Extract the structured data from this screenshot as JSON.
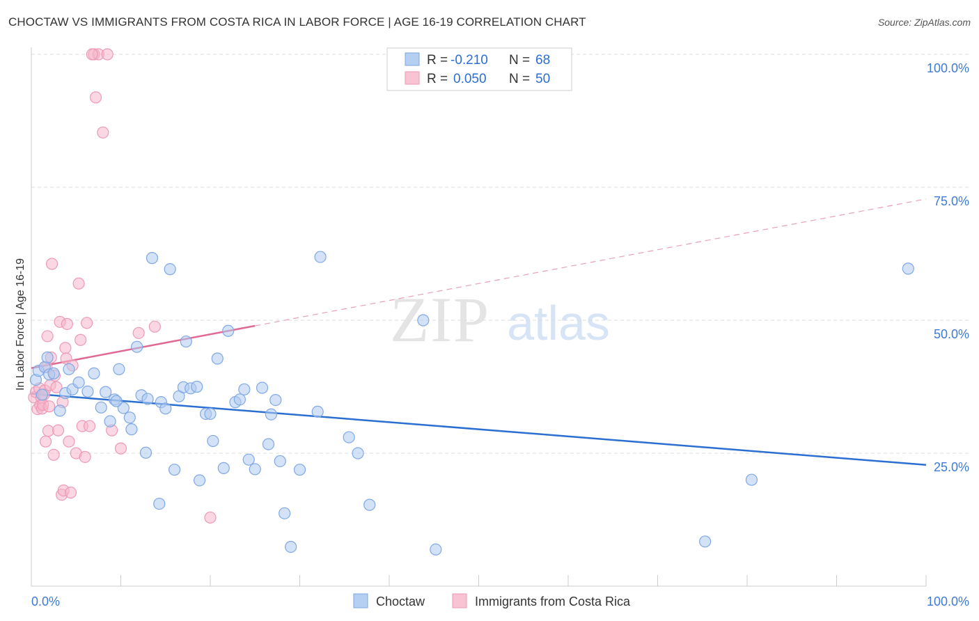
{
  "header": {
    "title": "CHOCTAW VS IMMIGRANTS FROM COSTA RICA IN LABOR FORCE | AGE 16-19 CORRELATION CHART",
    "source": "Source: ZipAtlas.com"
  },
  "watermark": {
    "zip": "ZIP",
    "atlas": "atlas"
  },
  "colors": {
    "blue": "#2b6fd1",
    "blue_fill": "#aecbf1",
    "pink": "#e06a95",
    "pink_fill": "#f6b6ca",
    "grid": "#dddddd",
    "label_blue": "#3d7bd6"
  },
  "chart_data": {
    "type": "scatter",
    "title": "CHOCTAW VS IMMIGRANTS FROM COSTA RICA IN LABOR FORCE | AGE 16-19 CORRELATION CHART",
    "xlabel": "",
    "ylabel": "In Labor Force | Age 16-19",
    "xlim": [
      0,
      100
    ],
    "ylim": [
      0,
      100
    ],
    "x_tick_labels": [
      "0.0%",
      "100.0%"
    ],
    "y_ticks": [
      25,
      50,
      75,
      100
    ],
    "y_tick_labels": [
      "25.0%",
      "50.0%",
      "75.0%",
      "100.0%"
    ],
    "legend": {
      "position": "top-center",
      "entries": [
        {
          "r_label": "R =",
          "r_value": "-0.210",
          "n_label": "N =",
          "n_value": "68"
        },
        {
          "r_label": "R =",
          "r_value": "0.050",
          "n_label": "N =",
          "n_value": "50"
        }
      ]
    },
    "bottom_legend": [
      "Choctaw",
      "Immigrants from Costa Rica"
    ],
    "series": [
      {
        "name": "Choctaw",
        "r": -0.21,
        "n": 68,
        "trend": {
          "x0": 0,
          "y0": 36.2,
          "x1": 100,
          "y1": 22.8,
          "dashed_from": null
        },
        "points": [
          [
            0.5,
            38.8
          ],
          [
            0.8,
            40.5
          ],
          [
            1.2,
            36.0
          ],
          [
            1.5,
            41.2
          ],
          [
            1.8,
            43.0
          ],
          [
            2.0,
            39.8
          ],
          [
            2.5,
            40.0
          ],
          [
            3.2,
            33.0
          ],
          [
            3.8,
            36.3
          ],
          [
            4.2,
            40.8
          ],
          [
            4.6,
            37.0
          ],
          [
            5.3,
            38.3
          ],
          [
            6.3,
            36.6
          ],
          [
            7.0,
            40.0
          ],
          [
            7.8,
            33.6
          ],
          [
            8.3,
            36.5
          ],
          [
            8.8,
            31.0
          ],
          [
            9.3,
            35.1
          ],
          [
            9.8,
            40.8
          ],
          [
            10.3,
            33.5
          ],
          [
            11.0,
            31.7
          ],
          [
            11.2,
            29.5
          ],
          [
            11.8,
            45.0
          ],
          [
            12.3,
            35.9
          ],
          [
            12.8,
            25.1
          ],
          [
            13.0,
            35.2
          ],
          [
            13.5,
            61.7
          ],
          [
            14.3,
            15.5
          ],
          [
            14.5,
            34.6
          ],
          [
            15.0,
            33.4
          ],
          [
            15.5,
            59.6
          ],
          [
            16.0,
            21.9
          ],
          [
            16.5,
            35.7
          ],
          [
            17.0,
            37.4
          ],
          [
            17.3,
            46.0
          ],
          [
            17.8,
            37.2
          ],
          [
            18.5,
            37.5
          ],
          [
            18.8,
            19.9
          ],
          [
            19.5,
            32.4
          ],
          [
            20.0,
            32.4
          ],
          [
            20.3,
            27.3
          ],
          [
            20.8,
            42.8
          ],
          [
            21.5,
            22.2
          ],
          [
            22.0,
            48.0
          ],
          [
            22.8,
            34.6
          ],
          [
            23.3,
            35.1
          ],
          [
            23.8,
            37.0
          ],
          [
            24.3,
            23.8
          ],
          [
            25.0,
            22.0
          ],
          [
            25.8,
            37.3
          ],
          [
            26.5,
            26.7
          ],
          [
            26.8,
            32.3
          ],
          [
            27.3,
            35.0
          ],
          [
            27.8,
            23.5
          ],
          [
            28.3,
            13.7
          ],
          [
            29.0,
            7.4
          ],
          [
            30.0,
            21.9
          ],
          [
            32.0,
            32.8
          ],
          [
            32.3,
            61.9
          ],
          [
            35.5,
            28.0
          ],
          [
            36.5,
            25.0
          ],
          [
            37.8,
            15.3
          ],
          [
            43.8,
            50.0
          ],
          [
            45.2,
            6.9
          ],
          [
            75.3,
            8.4
          ],
          [
            80.5,
            20.0
          ],
          [
            98.0,
            59.7
          ],
          [
            9.5,
            34.8
          ]
        ]
      },
      {
        "name": "Immigrants from Costa Rica",
        "r": 0.05,
        "n": 50,
        "trend": {
          "x0": 0,
          "y0": 41.0,
          "x1": 100,
          "y1": 72.8,
          "solid_until": 25
        },
        "points": [
          [
            0.3,
            35.5
          ],
          [
            0.5,
            36.5
          ],
          [
            0.7,
            33.3
          ],
          [
            0.9,
            37.2
          ],
          [
            1.0,
            34.0
          ],
          [
            1.1,
            35.5
          ],
          [
            1.2,
            33.4
          ],
          [
            1.3,
            34.1
          ],
          [
            1.5,
            36.8
          ],
          [
            1.6,
            27.2
          ],
          [
            1.7,
            41.2
          ],
          [
            1.8,
            47.0
          ],
          [
            1.9,
            29.2
          ],
          [
            2.0,
            33.8
          ],
          [
            2.1,
            37.8
          ],
          [
            2.2,
            43.0
          ],
          [
            2.3,
            60.6
          ],
          [
            2.5,
            24.7
          ],
          [
            2.6,
            39.6
          ],
          [
            2.8,
            37.4
          ],
          [
            3.0,
            29.3
          ],
          [
            3.2,
            49.7
          ],
          [
            3.4,
            17.2
          ],
          [
            3.5,
            34.6
          ],
          [
            3.6,
            18.0
          ],
          [
            3.8,
            44.8
          ],
          [
            3.9,
            42.8
          ],
          [
            4.0,
            49.3
          ],
          [
            4.2,
            27.2
          ],
          [
            4.4,
            17.6
          ],
          [
            4.6,
            41.5
          ],
          [
            5.0,
            25.0
          ],
          [
            5.3,
            56.9
          ],
          [
            5.5,
            46.3
          ],
          [
            5.7,
            30.1
          ],
          [
            6.0,
            24.3
          ],
          [
            6.2,
            49.5
          ],
          [
            6.5,
            30.1
          ],
          [
            7.0,
            100.0
          ],
          [
            7.2,
            91.9
          ],
          [
            7.5,
            100.0
          ],
          [
            8.0,
            85.3
          ],
          [
            8.5,
            100.0
          ],
          [
            9.0,
            29.3
          ],
          [
            10.0,
            25.9
          ],
          [
            12.0,
            47.6
          ],
          [
            13.8,
            48.8
          ],
          [
            20.0,
            12.9
          ],
          [
            6.8,
            100.0
          ],
          [
            1.4,
            36.0
          ]
        ]
      }
    ]
  }
}
